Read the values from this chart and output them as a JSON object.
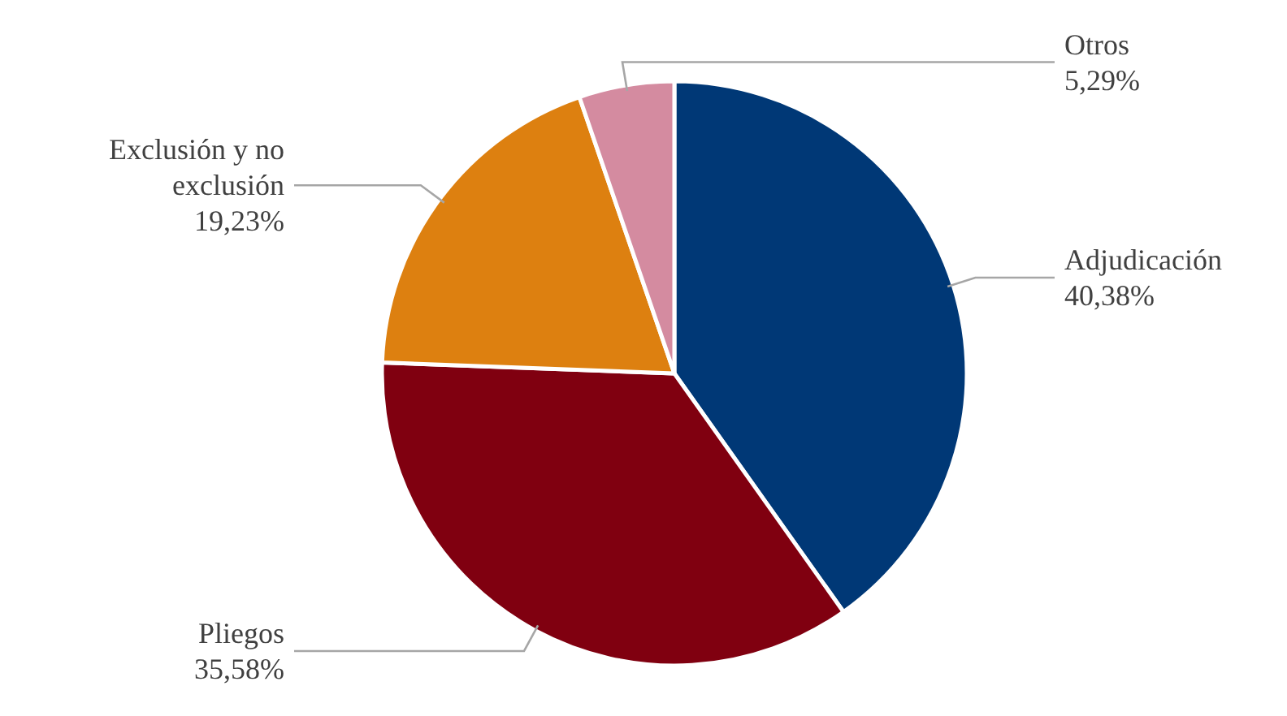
{
  "chart_data": {
    "type": "pie",
    "categories": [
      "Adjudicación",
      "Pliegos",
      "Exclusión y no exclusión",
      "Otros"
    ],
    "values": [
      40.38,
      35.58,
      19.23,
      5.29
    ],
    "value_labels": [
      "40,38%",
      "35,58%",
      "19,23%",
      "5,29%"
    ],
    "colors": [
      "#003876",
      "#800010",
      "#dd8010",
      "#d48ba0"
    ]
  }
}
